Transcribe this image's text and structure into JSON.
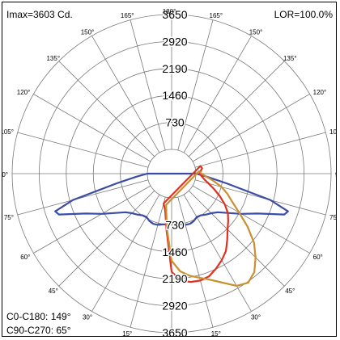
{
  "header": {
    "imax": "Imax=3603 Cd.",
    "lor": "LOR=100.0%"
  },
  "footer": {
    "c0_c180": "C0-C180:  149°",
    "c90_c270": "C90-C270: 65°"
  },
  "chart_data": {
    "type": "polar",
    "title": "",
    "radial_ticks": [
      "730",
      "1460",
      "2190",
      "2920",
      "3650"
    ],
    "radial_values": [
      730,
      1460,
      2190,
      2920,
      3650
    ],
    "r_max": 3650,
    "angle_labels": {
      "left": [
        "0°",
        "15°",
        "30°",
        "45°",
        "60°",
        "75°",
        "90°",
        "105°",
        "120°",
        "135°",
        "150°",
        "165°"
      ],
      "right": [
        "15°",
        "30°",
        "45°",
        "60°",
        "75°",
        "90°",
        "105°",
        "120°",
        "135°",
        "150°",
        "165°"
      ],
      "top": "180°"
    },
    "series": [
      {
        "color": "#3a4ca8",
        "angles": [
          -90,
          -85,
          -80,
          -75,
          -72,
          -70,
          -65,
          -60,
          -55,
          -50,
          -45,
          -40,
          -35,
          -30,
          -25,
          -20,
          -15,
          -10,
          -5,
          0,
          5,
          10,
          15,
          20,
          25,
          30,
          35,
          40,
          45,
          50,
          55,
          60,
          65,
          70,
          72,
          75,
          80,
          85,
          90
        ],
        "values": [
          0,
          300,
          850,
          2100,
          2650,
          2580,
          1900,
          1520,
          1200,
          970,
          860,
          790,
          720,
          700,
          760,
          790,
          780,
          740,
          720,
          700,
          720,
          740,
          780,
          790,
          760,
          700,
          720,
          790,
          860,
          970,
          1200,
          1520,
          1900,
          2580,
          2650,
          2100,
          850,
          300,
          0
        ]
      },
      {
        "color": "#e03020",
        "angles": [
          -15,
          -10,
          -5,
          0,
          5,
          10,
          15,
          20,
          25,
          30,
          35,
          40,
          45,
          50,
          55,
          60,
          65,
          70,
          75,
          80,
          85,
          90,
          95,
          100,
          105
        ],
        "values": [
          180,
          350,
          900,
          2000,
          2250,
          2320,
          2340,
          2300,
          2180,
          2050,
          1900,
          1680,
          1480,
          1340,
          1200,
          1000,
          780,
          560,
          380,
          240,
          160,
          100,
          130,
          180,
          150
        ]
      },
      {
        "color": "#c89030",
        "angles": [
          -10,
          -5,
          0,
          5,
          10,
          15,
          20,
          25,
          30,
          35,
          40,
          45,
          50,
          55,
          60,
          65,
          70,
          75,
          80,
          85,
          90,
          95
        ],
        "values": [
          200,
          820,
          1700,
          2000,
          2150,
          2260,
          2400,
          2600,
          2850,
          2950,
          2820,
          2550,
          2250,
          1850,
          1450,
          1150,
          950,
          740,
          500,
          290,
          150,
          90
        ]
      }
    ]
  }
}
